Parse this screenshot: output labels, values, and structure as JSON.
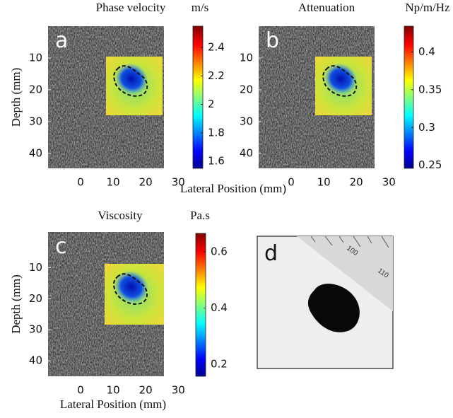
{
  "figure": {
    "x_label": "Lateral Position (mm)",
    "panels": [
      {
        "letter": "a",
        "title": "Phase velocity",
        "unit": "m/s",
        "y_label": "Depth (mm)",
        "xlim": [
          -10,
          25.6
        ],
        "ylim": [
          0,
          44.7
        ],
        "xticks": [
          0,
          10,
          20,
          30
        ],
        "yticks": [
          10,
          20,
          30,
          40
        ],
        "clim": [
          1.55,
          2.55
        ],
        "cticks": [
          1.6,
          1.8,
          2,
          2.2,
          2.4
        ]
      },
      {
        "letter": "b",
        "title": "Attenuation",
        "unit": "Np/m/Hz",
        "xlim": [
          -10,
          25.6
        ],
        "ylim": [
          0,
          44.7
        ],
        "xticks": [
          0,
          10,
          20,
          30
        ],
        "yticks": [
          10,
          20,
          30,
          40
        ],
        "clim": [
          0.246,
          0.434
        ],
        "cticks": [
          0.25,
          0.3,
          0.35,
          0.4
        ]
      },
      {
        "letter": "c",
        "title": "Viscosity",
        "unit": "Pa.s",
        "y_label": "Depth (mm)",
        "x_label": "Lateral Position (mm)",
        "xlim": [
          -10,
          25.6
        ],
        "ylim": [
          -1.5,
          45
        ],
        "xticks": [
          0,
          10,
          20,
          30
        ],
        "yticks": [
          10,
          20,
          30,
          40
        ],
        "clim": [
          0.157,
          0.666
        ],
        "cticks": [
          0.2,
          0.4,
          0.6
        ]
      },
      {
        "letter": "d",
        "ruler_labels": [
          "100",
          "110"
        ]
      }
    ]
  }
}
